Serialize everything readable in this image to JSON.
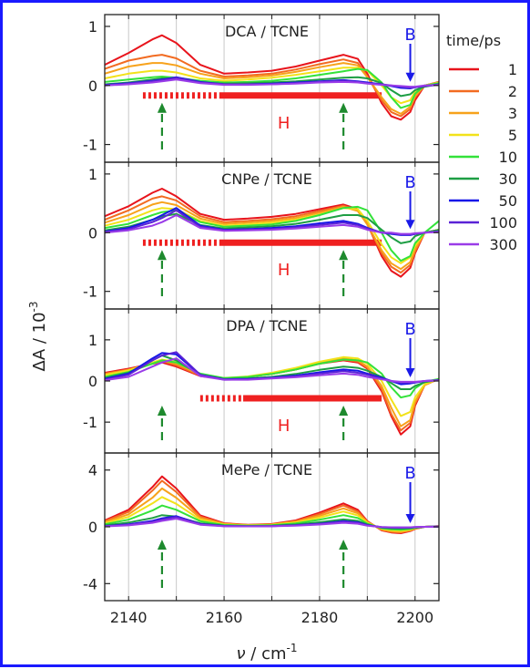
{
  "chart_data": {
    "type": "line",
    "xlabel_var": "ν",
    "xlabel_unit": " / cm",
    "xlabel_exp": "-1",
    "ylabel_main": "ΔA / 10",
    "ylabel_exp": "-3",
    "xlim": [
      2135,
      2205
    ],
    "x_ticks": [
      2140,
      2160,
      2180,
      2200
    ],
    "legend_title": "time/ps",
    "legend_position": "right",
    "colors": {
      "1": "#e8141c",
      "2": "#f26b21",
      "3": "#f7a21b",
      "5": "#f2e21a",
      "10": "#33e23a",
      "30": "#1e9e44",
      "50": "#1616e8",
      "100": "#5a23d6",
      "300": "#9a3ce8"
    },
    "series_names": [
      "1",
      "2",
      "3",
      "5",
      "10",
      "30",
      "50",
      "100",
      "300"
    ],
    "x": [
      2135,
      2140,
      2145,
      2147,
      2150,
      2155,
      2160,
      2165,
      2170,
      2175,
      2180,
      2185,
      2188,
      2190,
      2193,
      2195,
      2197,
      2199,
      2200,
      2202,
      2205
    ],
    "panels": [
      {
        "title": "DCA / TCNE",
        "ylim": [
          -1.3,
          1.2
        ],
        "yticks": [
          -1,
          0,
          1
        ],
        "ytick_labels": [
          "-1",
          "0",
          "1"
        ],
        "b_label": "B",
        "b_x": 2199,
        "h_label": "H",
        "h_dashed": [
          2143,
          2159
        ],
        "h_solid": [
          2159,
          2193
        ],
        "h_y": -0.17,
        "arrows_x": [
          2147,
          2185
        ],
        "series": [
          [
            0.35,
            0.55,
            0.78,
            0.85,
            0.72,
            0.35,
            0.2,
            0.22,
            0.25,
            0.32,
            0.42,
            0.52,
            0.45,
            0.2,
            -0.3,
            -0.52,
            -0.58,
            -0.45,
            -0.25,
            0.0,
            0.06
          ],
          [
            0.28,
            0.42,
            0.5,
            0.52,
            0.46,
            0.25,
            0.15,
            0.17,
            0.2,
            0.27,
            0.36,
            0.44,
            0.38,
            0.15,
            -0.25,
            -0.45,
            -0.52,
            -0.4,
            -0.2,
            0.0,
            0.05
          ],
          [
            0.2,
            0.32,
            0.38,
            0.38,
            0.34,
            0.2,
            0.12,
            0.14,
            0.17,
            0.23,
            0.31,
            0.38,
            0.34,
            0.14,
            -0.2,
            -0.4,
            -0.48,
            -0.36,
            -0.18,
            0.0,
            0.05
          ],
          [
            0.12,
            0.2,
            0.25,
            0.25,
            0.22,
            0.12,
            0.08,
            0.1,
            0.13,
            0.18,
            0.24,
            0.3,
            0.3,
            0.25,
            0.0,
            -0.2,
            -0.3,
            -0.25,
            -0.1,
            0.0,
            0.05
          ],
          [
            0.06,
            0.1,
            0.14,
            0.15,
            0.13,
            0.08,
            0.05,
            0.06,
            0.08,
            0.12,
            0.18,
            0.24,
            0.28,
            0.26,
            0.05,
            -0.2,
            -0.38,
            -0.33,
            -0.14,
            0.0,
            0.04
          ],
          [
            0.02,
            0.05,
            0.1,
            0.12,
            0.12,
            0.05,
            0.03,
            0.04,
            0.05,
            0.07,
            0.1,
            0.13,
            0.14,
            0.12,
            0.04,
            -0.08,
            -0.18,
            -0.15,
            -0.08,
            -0.02,
            0.02
          ],
          [
            0.01,
            0.04,
            0.08,
            0.1,
            0.14,
            0.06,
            0.02,
            0.02,
            0.03,
            0.05,
            0.07,
            0.09,
            0.07,
            0.05,
            0.02,
            -0.01,
            -0.04,
            -0.05,
            -0.03,
            -0.01,
            0.02
          ],
          [
            0.0,
            0.03,
            0.07,
            0.09,
            0.13,
            0.05,
            0.02,
            0.02,
            0.02,
            0.04,
            0.06,
            0.08,
            0.06,
            0.04,
            0.02,
            0.0,
            -0.02,
            -0.04,
            -0.03,
            -0.01,
            0.01
          ],
          [
            0.0,
            0.02,
            0.05,
            0.07,
            0.1,
            0.04,
            0.01,
            0.01,
            0.02,
            0.03,
            0.05,
            0.06,
            0.05,
            0.03,
            0.01,
            0.0,
            -0.01,
            -0.02,
            -0.02,
            0.0,
            0.01
          ]
        ]
      },
      {
        "title": "CNPe / TCNE",
        "ylim": [
          -1.3,
          1.2
        ],
        "yticks": [
          -1,
          0,
          1
        ],
        "ytick_labels": [
          "-1",
          "0",
          "1"
        ],
        "b_label": "B",
        "b_x": 2199,
        "h_label": "H",
        "h_dashed": [
          2143,
          2159
        ],
        "h_solid": [
          2159,
          2193
        ],
        "h_y": -0.17,
        "arrows_x": [
          2147,
          2185
        ],
        "series": [
          [
            0.28,
            0.45,
            0.68,
            0.75,
            0.62,
            0.32,
            0.22,
            0.24,
            0.27,
            0.32,
            0.4,
            0.48,
            0.4,
            0.15,
            -0.4,
            -0.65,
            -0.75,
            -0.6,
            -0.35,
            0.0,
            0.05
          ],
          [
            0.22,
            0.38,
            0.58,
            0.62,
            0.55,
            0.28,
            0.18,
            0.2,
            0.23,
            0.28,
            0.37,
            0.46,
            0.38,
            0.14,
            -0.35,
            -0.58,
            -0.68,
            -0.55,
            -0.32,
            0.0,
            0.05
          ],
          [
            0.17,
            0.3,
            0.48,
            0.52,
            0.47,
            0.24,
            0.15,
            0.17,
            0.2,
            0.25,
            0.34,
            0.44,
            0.37,
            0.14,
            -0.3,
            -0.52,
            -0.62,
            -0.5,
            -0.28,
            0.0,
            0.05
          ],
          [
            0.12,
            0.22,
            0.38,
            0.42,
            0.4,
            0.2,
            0.12,
            0.14,
            0.17,
            0.22,
            0.31,
            0.42,
            0.4,
            0.2,
            -0.2,
            -0.42,
            -0.52,
            -0.42,
            -0.22,
            0.0,
            0.05
          ],
          [
            0.08,
            0.15,
            0.3,
            0.35,
            0.38,
            0.18,
            0.1,
            0.12,
            0.14,
            0.2,
            0.3,
            0.42,
            0.44,
            0.38,
            0.0,
            -0.3,
            -0.48,
            -0.4,
            -0.18,
            0.0,
            0.2
          ],
          [
            0.04,
            0.1,
            0.22,
            0.28,
            0.32,
            0.13,
            0.07,
            0.09,
            0.11,
            0.15,
            0.22,
            0.3,
            0.3,
            0.25,
            0.05,
            -0.08,
            -0.18,
            -0.15,
            -0.06,
            0.0,
            0.05
          ],
          [
            0.02,
            0.08,
            0.22,
            0.3,
            0.42,
            0.12,
            0.05,
            0.06,
            0.08,
            0.11,
            0.16,
            0.2,
            0.15,
            0.08,
            0.0,
            -0.02,
            -0.04,
            -0.04,
            -0.02,
            0.0,
            0.02
          ],
          [
            0.01,
            0.06,
            0.18,
            0.25,
            0.38,
            0.1,
            0.04,
            0.05,
            0.06,
            0.09,
            0.13,
            0.17,
            0.13,
            0.07,
            0.0,
            -0.01,
            -0.03,
            -0.03,
            -0.02,
            0.0,
            0.02
          ],
          [
            0.0,
            0.04,
            0.12,
            0.18,
            0.3,
            0.08,
            0.03,
            0.04,
            0.05,
            0.07,
            0.1,
            0.13,
            0.1,
            0.05,
            0.0,
            0.0,
            -0.02,
            -0.02,
            -0.01,
            0.0,
            0.01
          ]
        ]
      },
      {
        "title": "DPA / TCNE",
        "ylim": [
          -1.75,
          1.75
        ],
        "yticks": [
          -1,
          0,
          1
        ],
        "ytick_labels": [
          "-1",
          "0",
          "1"
        ],
        "b_label": "B",
        "b_x": 2199,
        "h_label": "H",
        "h_dashed": [
          2155,
          2164
        ],
        "h_solid": [
          2164,
          2193
        ],
        "h_y": -0.42,
        "arrows_x": [
          2147,
          2185
        ],
        "series": [
          [
            0.2,
            0.3,
            0.42,
            0.45,
            0.35,
            0.12,
            0.05,
            0.1,
            0.17,
            0.28,
            0.42,
            0.5,
            0.45,
            0.3,
            -0.25,
            -0.85,
            -1.3,
            -1.1,
            -0.6,
            -0.1,
            0.05
          ],
          [
            0.18,
            0.28,
            0.42,
            0.48,
            0.38,
            0.13,
            0.05,
            0.1,
            0.17,
            0.28,
            0.43,
            0.52,
            0.47,
            0.32,
            -0.2,
            -0.8,
            -1.2,
            -1.02,
            -0.55,
            -0.1,
            0.05
          ],
          [
            0.16,
            0.27,
            0.42,
            0.5,
            0.42,
            0.15,
            0.06,
            0.1,
            0.18,
            0.3,
            0.45,
            0.55,
            0.5,
            0.35,
            -0.12,
            -0.65,
            -1.1,
            -0.95,
            -0.5,
            -0.1,
            0.05
          ],
          [
            0.14,
            0.26,
            0.45,
            0.52,
            0.46,
            0.17,
            0.07,
            0.11,
            0.2,
            0.32,
            0.47,
            0.58,
            0.55,
            0.42,
            0.0,
            -0.45,
            -0.85,
            -0.75,
            -0.4,
            -0.08,
            0.05
          ],
          [
            0.1,
            0.22,
            0.42,
            0.5,
            0.45,
            0.18,
            0.07,
            0.1,
            0.17,
            0.28,
            0.42,
            0.52,
            0.5,
            0.45,
            0.18,
            -0.15,
            -0.4,
            -0.35,
            -0.18,
            -0.02,
            0.05
          ],
          [
            0.07,
            0.2,
            0.5,
            0.62,
            0.5,
            0.15,
            0.05,
            0.06,
            0.1,
            0.17,
            0.27,
            0.35,
            0.32,
            0.25,
            0.1,
            -0.05,
            -0.2,
            -0.2,
            -0.12,
            -0.03,
            0.03
          ],
          [
            0.05,
            0.18,
            0.55,
            0.68,
            0.65,
            0.15,
            0.04,
            0.05,
            0.08,
            0.13,
            0.21,
            0.28,
            0.25,
            0.18,
            0.08,
            0.0,
            -0.08,
            -0.06,
            -0.04,
            0.0,
            0.02
          ],
          [
            0.03,
            0.15,
            0.5,
            0.62,
            0.7,
            0.15,
            0.03,
            0.04,
            0.07,
            0.11,
            0.18,
            0.24,
            0.2,
            0.15,
            0.06,
            0.0,
            -0.04,
            -0.04,
            -0.03,
            0.0,
            0.02
          ],
          [
            0.02,
            0.1,
            0.35,
            0.45,
            0.55,
            0.12,
            0.03,
            0.03,
            0.06,
            0.09,
            0.14,
            0.18,
            0.15,
            0.1,
            0.04,
            0.0,
            -0.02,
            -0.02,
            -0.02,
            0.0,
            0.01
          ]
        ]
      },
      {
        "title": "MePe / TCNE",
        "ylim": [
          -5.2,
          5.2
        ],
        "yticks": [
          -4,
          0,
          4
        ],
        "ytick_labels": [
          "-4",
          "0",
          "4"
        ],
        "b_label": "B",
        "b_x": 2199,
        "h_label": "",
        "h_dashed": null,
        "h_solid": null,
        "h_y": null,
        "arrows_x": [
          2147,
          2185
        ],
        "series": [
          [
            0.45,
            1.2,
            2.8,
            3.55,
            2.7,
            0.8,
            0.25,
            0.15,
            0.2,
            0.45,
            1.0,
            1.65,
            1.2,
            0.4,
            -0.25,
            -0.4,
            -0.45,
            -0.3,
            -0.15,
            0.0,
            0.05
          ],
          [
            0.4,
            1.05,
            2.55,
            3.25,
            2.45,
            0.72,
            0.22,
            0.13,
            0.18,
            0.4,
            0.9,
            1.5,
            1.08,
            0.36,
            -0.22,
            -0.36,
            -0.4,
            -0.27,
            -0.13,
            0.0,
            0.05
          ],
          [
            0.32,
            0.88,
            2.05,
            2.7,
            2.05,
            0.62,
            0.2,
            0.12,
            0.16,
            0.35,
            0.78,
            1.3,
            0.95,
            0.32,
            -0.18,
            -0.3,
            -0.35,
            -0.24,
            -0.11,
            0.0,
            0.04
          ],
          [
            0.25,
            0.7,
            1.65,
            2.1,
            1.62,
            0.5,
            0.16,
            0.1,
            0.14,
            0.3,
            0.65,
            1.08,
            0.8,
            0.28,
            -0.14,
            -0.24,
            -0.28,
            -0.2,
            -0.1,
            0.0,
            0.04
          ],
          [
            0.18,
            0.5,
            1.15,
            1.5,
            1.2,
            0.4,
            0.13,
            0.08,
            0.11,
            0.24,
            0.5,
            0.82,
            0.62,
            0.22,
            -0.1,
            -0.18,
            -0.21,
            -0.15,
            -0.08,
            0.0,
            0.03
          ],
          [
            0.1,
            0.3,
            0.62,
            0.82,
            0.72,
            0.25,
            0.09,
            0.06,
            0.08,
            0.16,
            0.32,
            0.52,
            0.42,
            0.16,
            -0.06,
            -0.11,
            -0.13,
            -0.1,
            -0.05,
            0.0,
            0.02
          ],
          [
            0.05,
            0.18,
            0.42,
            0.6,
            0.75,
            0.2,
            0.06,
            0.04,
            0.05,
            0.11,
            0.22,
            0.4,
            0.32,
            0.12,
            -0.03,
            -0.05,
            -0.06,
            -0.05,
            -0.03,
            0.0,
            0.02
          ],
          [
            0.04,
            0.14,
            0.35,
            0.52,
            0.7,
            0.18,
            0.05,
            0.03,
            0.05,
            0.1,
            0.2,
            0.35,
            0.28,
            0.1,
            -0.02,
            -0.04,
            -0.05,
            -0.04,
            -0.02,
            0.0,
            0.02
          ],
          [
            0.03,
            0.1,
            0.28,
            0.42,
            0.58,
            0.15,
            0.04,
            0.03,
            0.04,
            0.08,
            0.16,
            0.28,
            0.22,
            0.08,
            -0.02,
            -0.03,
            -0.04,
            -0.03,
            -0.02,
            0.0,
            0.01
          ]
        ]
      }
    ]
  }
}
